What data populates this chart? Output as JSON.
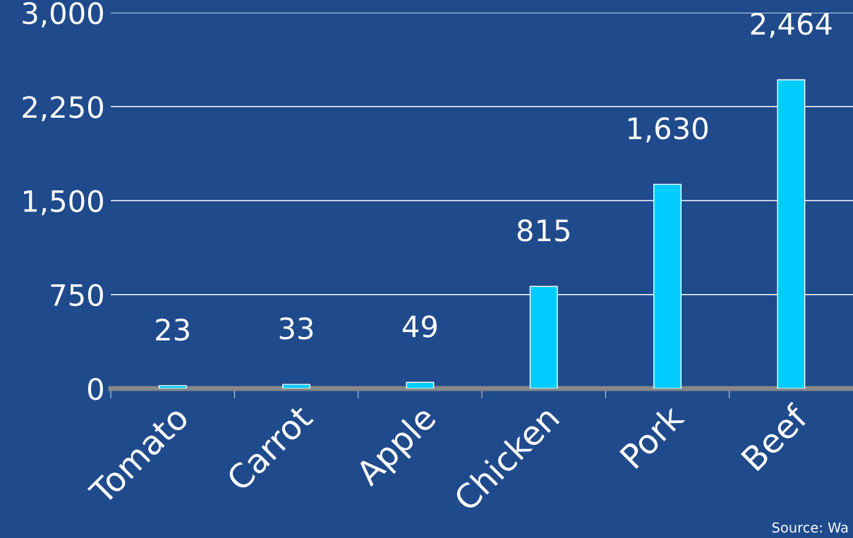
{
  "chart_data": {
    "type": "bar",
    "categories": [
      "Tomato",
      "Carrot",
      "Apple",
      "Chicken",
      "Pork",
      "Beef"
    ],
    "values": [
      23,
      33,
      49,
      815,
      1630,
      2464
    ],
    "color": "#00ccff",
    "ylim": [
      0,
      3000
    ],
    "yticks": [
      {
        "value": 0,
        "label": "0"
      },
      {
        "value": 750,
        "label": "750"
      },
      {
        "value": 1500,
        "label": "1,500"
      },
      {
        "value": 2250,
        "label": "2,250"
      },
      {
        "value": 3000,
        "label": "3,000"
      }
    ],
    "value_labels": [
      "23",
      "33",
      "49",
      "815",
      "1,630",
      "2,464"
    ],
    "grid": "y",
    "annotations": [
      "Source: Wa"
    ]
  }
}
